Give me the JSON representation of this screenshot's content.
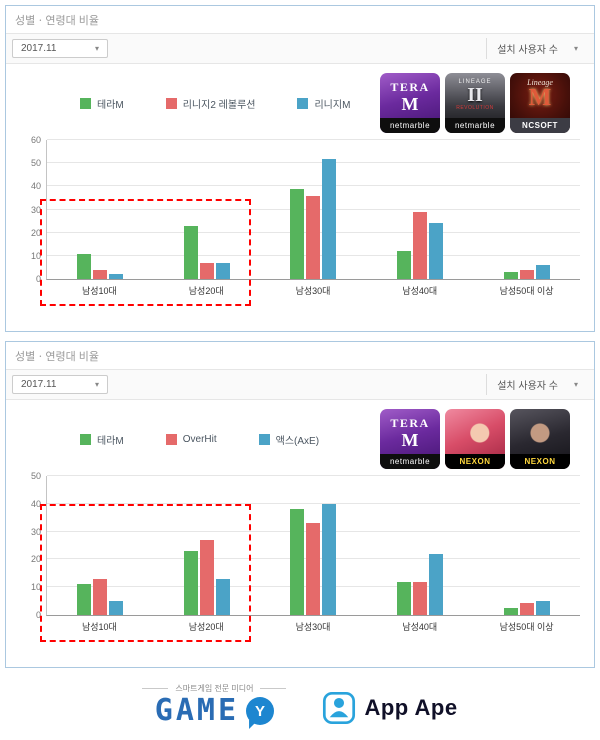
{
  "colors": {
    "green": "#56b45c",
    "red": "#e56a6a",
    "blue": "#4ba3c7",
    "highlight_box": "#ff0000",
    "panel_border": "#abc8e0"
  },
  "panels": [
    {
      "title": "성별ㆍ연령대 비율",
      "period": "2017.11",
      "metric_label": "설치 사용자 수",
      "legend": [
        {
          "label": "테라M"
        },
        {
          "label": "리니지2 레볼루션"
        },
        {
          "label": "리니지M"
        }
      ],
      "apps": [
        {
          "name": "TERA M",
          "icon_top": "TERA",
          "icon_main": "M",
          "publisher": "netmarble"
        },
        {
          "name": "LINEAGE II REVOLUTION",
          "icon_top": "LINEAGE",
          "icon_main": "II",
          "icon_sub": "REVOLUTION",
          "publisher": "netmarble"
        },
        {
          "name": "Lineage M",
          "icon_top": "Lineage",
          "icon_main": "M",
          "publisher": "NCSOFT"
        }
      ]
    },
    {
      "title": "성별ㆍ연령대 비율",
      "period": "2017.11",
      "metric_label": "설치 사용자 수",
      "legend": [
        {
          "label": "테라M"
        },
        {
          "label": "OverHit"
        },
        {
          "label": "액스(AxE)"
        }
      ],
      "apps": [
        {
          "name": "TERA M",
          "icon_top": "TERA",
          "icon_main": "M",
          "publisher": "netmarble"
        },
        {
          "name": "OverHit",
          "publisher": "NEXON"
        },
        {
          "name": "AxE",
          "publisher": "NEXON"
        }
      ]
    }
  ],
  "chart_data": [
    {
      "type": "bar",
      "title": "성별ㆍ연령대 비율 — 테라M vs 리니지2 레볼루션 vs 리니지M (설치 사용자 수, 2017.11)",
      "categories": [
        "남성10대",
        "남성20대",
        "남성30대",
        "남성40대",
        "남성50대 이상"
      ],
      "series": [
        {
          "name": "테라M",
          "color": "#56b45c",
          "values": [
            11,
            23,
            39,
            12,
            3
          ]
        },
        {
          "name": "리니지2 레볼루션",
          "color": "#e56a6a",
          "values": [
            4,
            7,
            36,
            29,
            4
          ]
        },
        {
          "name": "리니지M",
          "color": "#4ba3c7",
          "values": [
            2,
            7,
            52,
            24,
            6
          ]
        }
      ],
      "ylim": [
        0,
        60
      ],
      "yticks": [
        0,
        10,
        20,
        30,
        40,
        50,
        60
      ],
      "grid": true,
      "legend_position": "top-left",
      "highlight": {
        "categories": [
          "남성10대",
          "남성20대"
        ],
        "style": "red-dashed-box",
        "top_value": 34.5
      }
    },
    {
      "type": "bar",
      "title": "성별ㆍ연령대 비율 — 테라M vs OverHit vs 액스(AxE) (설치 사용자 수, 2017.11)",
      "categories": [
        "남성10대",
        "남성20대",
        "남성30대",
        "남성40대",
        "남성50대 이상"
      ],
      "series": [
        {
          "name": "테라M",
          "color": "#56b45c",
          "values": [
            11,
            23,
            38,
            12,
            2.5
          ]
        },
        {
          "name": "OverHit",
          "color": "#e56a6a",
          "values": [
            13,
            27,
            33,
            12,
            4.5
          ]
        },
        {
          "name": "액스(AxE)",
          "color": "#4ba3c7",
          "values": [
            5,
            13,
            40,
            22,
            5
          ]
        }
      ],
      "ylim": [
        0,
        50
      ],
      "yticks": [
        0,
        10,
        20,
        30,
        40,
        50
      ],
      "grid": true,
      "legend_position": "top-left",
      "highlight": {
        "categories": [
          "남성10대",
          "남성20대"
        ],
        "style": "red-dashed-box",
        "top_value": 40
      }
    }
  ],
  "footer": {
    "gamey_caption": "스마트게임 전문 미디어",
    "gamey_text": "GAME",
    "gamey_bubble_letter": "Y",
    "appape_text": "App Ape"
  }
}
